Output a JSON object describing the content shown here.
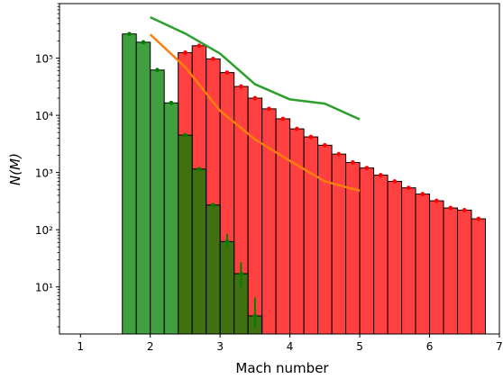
{
  "chart_data": {
    "type": "bar",
    "xlabel": "Mach number",
    "ylabel": "N(M)",
    "xlim": [
      0.7,
      7.0
    ],
    "ylim": [
      1.5,
      900000
    ],
    "yscale": "log",
    "xticks": [
      1,
      2,
      3,
      4,
      5,
      6,
      7
    ],
    "xtick_labels": [
      "1",
      "2",
      "3",
      "4",
      "5",
      "6",
      "7"
    ],
    "yticks": [
      10,
      100,
      1000,
      10000,
      100000
    ],
    "ytick_labels": [
      "10¹",
      "10²",
      "10³",
      "10⁴",
      "10⁵"
    ],
    "bin_width": 0.2,
    "series": [
      {
        "kind": "histogram",
        "color": "#ff0000",
        "alpha": 0.75,
        "bin_starts": [
          2.4,
          2.6,
          2.8,
          3.0,
          3.2,
          3.4,
          3.6,
          3.8,
          4.0,
          4.2,
          4.4,
          4.6,
          4.8,
          5.0,
          5.2,
          5.4,
          5.6,
          5.8,
          6.0,
          6.2,
          6.4,
          6.6
        ],
        "values": [
          125000,
          165000,
          97000,
          56000,
          32000,
          20000,
          13000,
          8700,
          5800,
          4200,
          3000,
          2100,
          1500,
          1200,
          900,
          700,
          540,
          420,
          320,
          240,
          220,
          155
        ]
      },
      {
        "kind": "histogram",
        "color": "#008000",
        "alpha": 0.75,
        "bin_starts": [
          1.6,
          1.8,
          2.0,
          2.2,
          2.4,
          2.6,
          2.8,
          3.0,
          3.2,
          3.4
        ],
        "values": [
          265000,
          190000,
          62000,
          16500,
          4500,
          1150,
          270,
          62,
          17,
          3.1
        ],
        "error_upper": [
          null,
          null,
          null,
          null,
          null,
          null,
          null,
          85,
          27,
          6.5
        ],
        "error_lower": [
          null,
          null,
          null,
          null,
          null,
          null,
          null,
          50,
          10,
          2.0
        ]
      },
      {
        "kind": "line",
        "color": "#2ca02c",
        "x": [
          2.0,
          2.5,
          3.0,
          3.5,
          4.0,
          4.5,
          5.0
        ],
        "y": [
          520000,
          270000,
          120000,
          35000,
          19000,
          16000,
          8500
        ]
      },
      {
        "kind": "line",
        "color": "#ff7f0e",
        "x": [
          2.0,
          2.5,
          3.0,
          3.5,
          4.0,
          4.5,
          5.0
        ],
        "y": [
          260000,
          70000,
          12000,
          3800,
          1600,
          700,
          480
        ]
      }
    ]
  }
}
